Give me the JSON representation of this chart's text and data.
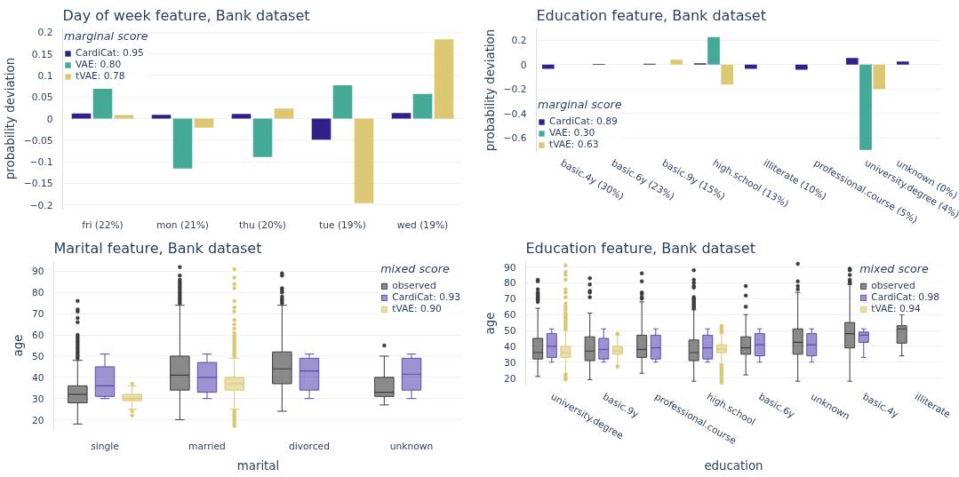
{
  "chart_data": [
    {
      "type": "bar",
      "title": "Day of week feature, Bank dataset",
      "ylabel": "probability deviation",
      "categories": [
        "fri (22%)",
        "mon (21%)",
        "thu (20%)",
        "tue (19%)",
        "wed (19%)"
      ],
      "series": [
        {
          "name": "CardiCat: 0.95",
          "color": "#32208a",
          "values": [
            0.012,
            0.009,
            0.011,
            -0.049,
            0.013
          ]
        },
        {
          "name": "VAE: 0.80",
          "color": "#45a997",
          "values": [
            0.069,
            -0.116,
            -0.089,
            0.077,
            0.057
          ]
        },
        {
          "name": "tVAE: 0.78",
          "color": "#dcc872",
          "values": [
            0.008,
            -0.021,
            0.023,
            -0.196,
            0.184
          ]
        }
      ],
      "ylim": [
        -0.21,
        0.21
      ],
      "yticks": [
        {
          "value": -0.2,
          "label": "−0.2"
        },
        {
          "value": -0.15,
          "label": "−0.15"
        },
        {
          "value": -0.1,
          "label": "−0.1"
        },
        {
          "value": -0.05,
          "label": "−0.05"
        },
        0,
        0.05,
        0.1,
        0.15,
        0.2
      ],
      "grid": "y",
      "legend": "top left",
      "legend_title": "marginal score"
    },
    {
      "type": "bar",
      "title": "Education feature, Bank dataset",
      "ylabel": "probability deviation",
      "categories": [
        "basic.4y (30%)",
        "basic.6y (23%)",
        "basic.9y (15%)",
        "high.school (13%)",
        "illiterate (10%)",
        "professional.course (5%)",
        "university.degree (4%)",
        "unknown (0%)"
      ],
      "series": [
        {
          "name": "CardiCat: 0.89",
          "color": "#32208a",
          "values": [
            -0.035,
            0.005,
            0.006,
            0.01,
            -0.035,
            -0.042,
            0.055,
            0.025
          ]
        },
        {
          "name": "VAE: 0.30",
          "color": "#45a997",
          "values": [
            null,
            null,
            null,
            0.225,
            null,
            null,
            -0.7,
            null
          ]
        },
        {
          "name": "tVAE: 0.63",
          "color": "#dcc872",
          "values": [
            null,
            null,
            0.04,
            -0.165,
            null,
            null,
            -0.2,
            null
          ]
        }
      ],
      "ylim": [
        -0.72,
        0.3
      ],
      "yticks": [
        {
          "value": -0.6,
          "label": "−0.6"
        },
        {
          "value": -0.4,
          "label": "−0.4"
        },
        {
          "value": -0.2,
          "label": "−0.2"
        },
        0,
        0.2
      ],
      "grid": "y",
      "legend": "bottom left",
      "legend_title": "marginal score"
    },
    {
      "type": "box",
      "title": "Marital feature, Bank dataset",
      "xlabel": "marital",
      "ylabel": "age",
      "categories": [
        "single",
        "married",
        "divorced",
        "unknown"
      ],
      "series": [
        {
          "name": "observed",
          "color": "#3c3c3c",
          "boxes": [
            {
              "low": 18,
              "q1": 28,
              "median": 32,
              "q3": 36,
              "high": 48,
              "outliers": [
                49,
                50,
                51,
                52,
                53,
                54,
                55,
                56,
                57,
                58,
                59,
                60,
                66,
                68,
                71,
                72,
                76
              ]
            },
            {
              "low": 20,
              "q1": 34,
              "median": 41,
              "q3": 50,
              "high": 74,
              "outliers": [
                75,
                76,
                77,
                78,
                79,
                80,
                81,
                82,
                83,
                84,
                85,
                86,
                88,
                92
              ]
            },
            {
              "low": 24,
              "q1": 37,
              "median": 44,
              "q3": 52,
              "high": 74,
              "outliers": [
                75,
                76,
                77,
                78,
                80,
                81,
                82,
                88,
                89
              ]
            },
            {
              "low": 27,
              "q1": 31,
              "median": 33,
              "q3": 40,
              "high": 50,
              "outliers": [
                55
              ]
            }
          ]
        },
        {
          "name": "CardiCat: 0.93",
          "color": "#5b4bb0",
          "boxes": [
            {
              "low": 30,
              "q1": 31,
              "median": 36,
              "q3": 45,
              "high": 51
            },
            {
              "low": 30,
              "q1": 33,
              "median": 40,
              "q3": 47,
              "high": 51
            },
            {
              "low": 30,
              "q1": 34,
              "median": 43,
              "q3": 49,
              "high": 51
            },
            {
              "low": 30,
              "q1": 34,
              "median": 41.5,
              "q3": 49,
              "high": 51
            }
          ]
        },
        {
          "name": "tVAE: 0.90",
          "color": "#dcc872",
          "boxes": [
            {
              "low": 25,
              "q1": 29,
              "median": 30,
              "q3": 32,
              "high": 36,
              "outliers": [
                22,
                24,
                37
              ]
            },
            {
              "low": 25,
              "q1": 34,
              "median": 37,
              "q3": 40,
              "high": 49,
              "outliers": [
                17,
                18,
                19,
                20,
                21,
                22,
                23,
                24,
                50,
                51,
                52,
                53,
                54,
                55,
                56,
                57,
                58,
                59,
                60,
                61,
                63,
                65,
                67,
                71,
                73,
                76,
                82,
                84,
                87,
                91
              ]
            },
            null,
            null
          ]
        }
      ],
      "ylim": [
        15,
        95
      ],
      "yticks": [
        20,
        30,
        40,
        50,
        60,
        70,
        80,
        90
      ],
      "grid": "y",
      "legend": "top right",
      "legend_title": "mixed score"
    },
    {
      "type": "box",
      "title": "Education feature, Bank dataset",
      "xlabel": "education",
      "ylabel": "age",
      "categories": [
        "university.degree",
        "basic.9y",
        "professional.course",
        "high.school",
        "basic.6y",
        "unknown",
        "basic.4y",
        "illiterate"
      ],
      "series": [
        {
          "name": "observed",
          "color": "#3c3c3c",
          "boxes": [
            {
              "low": 21,
              "q1": 32,
              "median": 36,
              "q3": 45,
              "high": 64,
              "outliers": [
                68,
                69,
                70,
                71,
                72,
                73,
                74,
                76,
                81,
                82
              ]
            },
            {
              "low": 19,
              "q1": 31,
              "median": 37,
              "q3": 46,
              "high": 61,
              "outliers": [
                71,
                74,
                75,
                79,
                83
              ]
            },
            {
              "low": 23,
              "q1": 33,
              "median": 38,
              "q3": 47,
              "high": 68,
              "outliers": [
                70,
                71,
                73,
                74,
                81,
                86
              ]
            },
            {
              "low": 18,
              "q1": 31,
              "median": 36,
              "q3": 44,
              "high": 63,
              "outliers": [
                64,
                65,
                66,
                67,
                68,
                69,
                70,
                71,
                77,
                78,
                80,
                82,
                88
              ]
            },
            {
              "low": 22,
              "q1": 35,
              "median": 39,
              "q3": 46,
              "high": 60,
              "outliers": [
                65,
                72,
                78
              ]
            },
            {
              "low": 18,
              "q1": 35,
              "median": 42.5,
              "q3": 51,
              "high": 74,
              "outliers": [
                76,
                78,
                81,
                92
              ]
            },
            {
              "low": 18,
              "q1": 39,
              "median": 48,
              "q3": 55,
              "high": 79,
              "outliers": [
                80,
                81,
                82,
                85,
                88,
                89
              ]
            },
            {
              "low": 34,
              "q1": 42,
              "median": 51,
              "q3": 53,
              "high": 60
            }
          ]
        },
        {
          "name": "CardiCat: 0.98",
          "color": "#5b4bb0",
          "boxes": [
            {
              "low": 30,
              "q1": 33,
              "median": 40,
              "q3": 48,
              "high": 51
            },
            {
              "low": 30,
              "q1": 32,
              "median": 38,
              "q3": 45,
              "high": 51
            },
            {
              "low": 30,
              "q1": 32,
              "median": 39,
              "q3": 47,
              "high": 51
            },
            {
              "low": 30,
              "q1": 32,
              "median": 39,
              "q3": 47,
              "high": 51
            },
            {
              "low": 30,
              "q1": 34,
              "median": 41,
              "q3": 48,
              "high": 51
            },
            {
              "low": 30,
              "q1": 34,
              "median": 41,
              "q3": 48,
              "high": 51
            },
            {
              "low": 33,
              "q1": 42.5,
              "median": 47,
              "q3": 49,
              "high": 51
            },
            null
          ]
        },
        {
          "name": "tVAE: 0.94",
          "color": "#dcc872",
          "boxes": [
            {
              "low": 23,
              "q1": 33,
              "median": 36,
              "q3": 40,
              "high": 50,
              "outliers": [
                19,
                20,
                21,
                22,
                51,
                52,
                53,
                54,
                55,
                56,
                57,
                58,
                59,
                60,
                61,
                63,
                65,
                67,
                71,
                74,
                76,
                82,
                85,
                87,
                91
              ]
            },
            {
              "low": 28,
              "q1": 35,
              "median": 37,
              "q3": 40,
              "high": 47,
              "outliers": [
                27,
                48
              ]
            },
            null,
            {
              "low": 29,
              "q1": 36,
              "median": 38,
              "q3": 41,
              "high": 48,
              "outliers": [
                17,
                18,
                19,
                20,
                21,
                22,
                23,
                24,
                25,
                26,
                27,
                28,
                49,
                50,
                51,
                52,
                53
              ]
            },
            null,
            null,
            null,
            null
          ]
        }
      ],
      "ylim": [
        15,
        94
      ],
      "yticks": [
        20,
        30,
        40,
        50,
        60,
        70,
        80,
        90
      ],
      "grid": "y",
      "legend": "top right",
      "legend_title": "mixed score"
    }
  ]
}
